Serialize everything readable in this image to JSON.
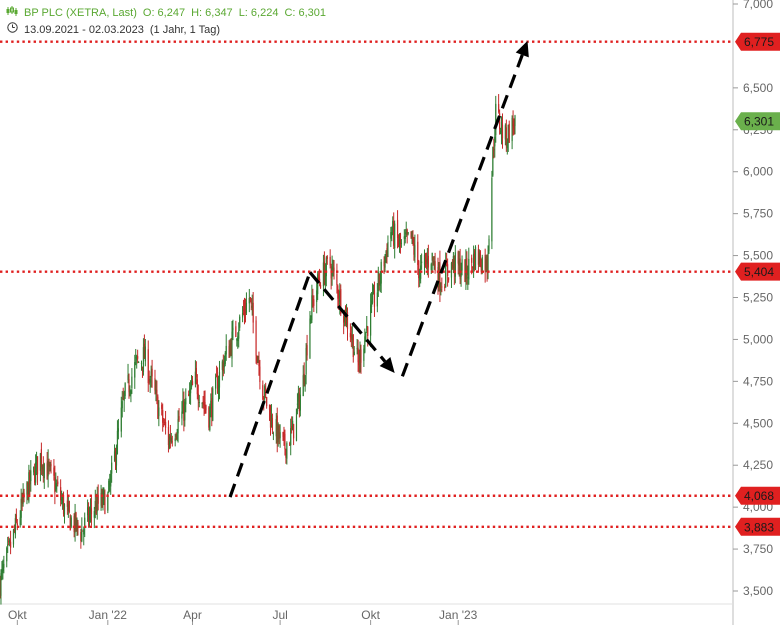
{
  "header": {
    "instrument": "BP PLC (XETRA, Last)",
    "open": "O: 6,247",
    "high": "H: 6,347",
    "low": "L: 6,224",
    "close": "C: 6,301",
    "period": "13.09.2021 - 02.03.2023",
    "interval": "(1 Jahr, 1 Tag)"
  },
  "colors": {
    "up": "#2e7d32",
    "down": "#c62828",
    "level_line": "#e02020",
    "last_price": "#6ab04c",
    "arrow": "#000000",
    "grid": "#cfcfcf",
    "text": "#666666"
  },
  "chart_data": {
    "type": "candlestick",
    "y_axis": {
      "range": [
        3.4,
        7.0
      ],
      "ticks": [
        "7,000",
        "6,500",
        "6,250",
        "6,000",
        "5,750",
        "5,500",
        "5,250",
        "5,000",
        "4,750",
        "4,500",
        "4,250",
        "4,000",
        "3,750",
        "3,500"
      ],
      "tick_values": [
        7.0,
        6.5,
        6.25,
        6.0,
        5.75,
        5.5,
        5.25,
        5.0,
        4.75,
        4.5,
        4.25,
        4.0,
        3.75,
        3.5
      ]
    },
    "x_axis": {
      "ticks": [
        "Okt",
        "Jan '22",
        "Apr",
        "Jul",
        "Okt",
        "Jan '23"
      ],
      "tick_dates": [
        "2021-10-01",
        "2022-01-03",
        "2022-04-01",
        "2022-07-01",
        "2022-10-03",
        "2023-01-02"
      ],
      "range": [
        "2021-09-13",
        "2023-03-02"
      ]
    },
    "price_path": {
      "dates": [
        "2021-09-13",
        "2021-09-28",
        "2021-10-11",
        "2021-10-25",
        "2021-11-08",
        "2021-11-22",
        "2021-12-06",
        "2021-12-20",
        "2022-01-03",
        "2022-01-10",
        "2022-01-20",
        "2022-02-01",
        "2022-02-10",
        "2022-02-24",
        "2022-03-07",
        "2022-03-21",
        "2022-04-04",
        "2022-04-18",
        "2022-05-02",
        "2022-05-16",
        "2022-05-30",
        "2022-06-13",
        "2022-06-23",
        "2022-07-05",
        "2022-07-14",
        "2022-07-25",
        "2022-08-01",
        "2022-08-10",
        "2022-08-22",
        "2022-09-01",
        "2022-09-12",
        "2022-09-20",
        "2022-09-28",
        "2022-10-10",
        "2022-10-24",
        "2022-11-04",
        "2022-11-14",
        "2022-11-23",
        "2022-12-05",
        "2022-12-15",
        "2022-12-28",
        "2023-01-10",
        "2023-01-20",
        "2023-02-01",
        "2023-02-07",
        "2023-02-10",
        "2023-02-20",
        "2023-03-02"
      ],
      "values": [
        3.55,
        3.85,
        4.1,
        4.3,
        4.15,
        3.95,
        3.85,
        4.0,
        4.05,
        4.3,
        4.65,
        4.85,
        4.9,
        4.6,
        4.4,
        4.55,
        4.75,
        4.55,
        4.85,
        5.05,
        5.25,
        4.7,
        4.5,
        4.35,
        4.45,
        4.75,
        5.15,
        5.35,
        5.45,
        5.25,
        5.05,
        4.85,
        5.05,
        5.3,
        5.65,
        5.55,
        5.6,
        5.4,
        5.5,
        5.35,
        5.45,
        5.4,
        5.5,
        5.45,
        6.1,
        6.35,
        6.2,
        6.301
      ]
    },
    "horizontal_levels": [
      {
        "label": "6,775",
        "value": 6.775
      },
      {
        "label": "5,404",
        "value": 5.404
      },
      {
        "label": "4,068",
        "value": 4.068
      },
      {
        "label": "3,883",
        "value": 3.883
      }
    ],
    "last_price": {
      "label": "6,301",
      "value": 6.301
    },
    "arrows": [
      {
        "from": {
          "date": "2022-05-10",
          "value": 4.06
        },
        "to": {
          "date": "2022-08-01",
          "value": 5.4
        }
      },
      {
        "from": {
          "date": "2022-08-01",
          "value": 5.4
        },
        "to": {
          "date": "2022-10-28",
          "value": 4.8
        }
      },
      {
        "from": {
          "date": "2022-11-05",
          "value": 4.78
        },
        "to": {
          "date": "2023-03-15",
          "value": 6.78
        }
      }
    ]
  }
}
